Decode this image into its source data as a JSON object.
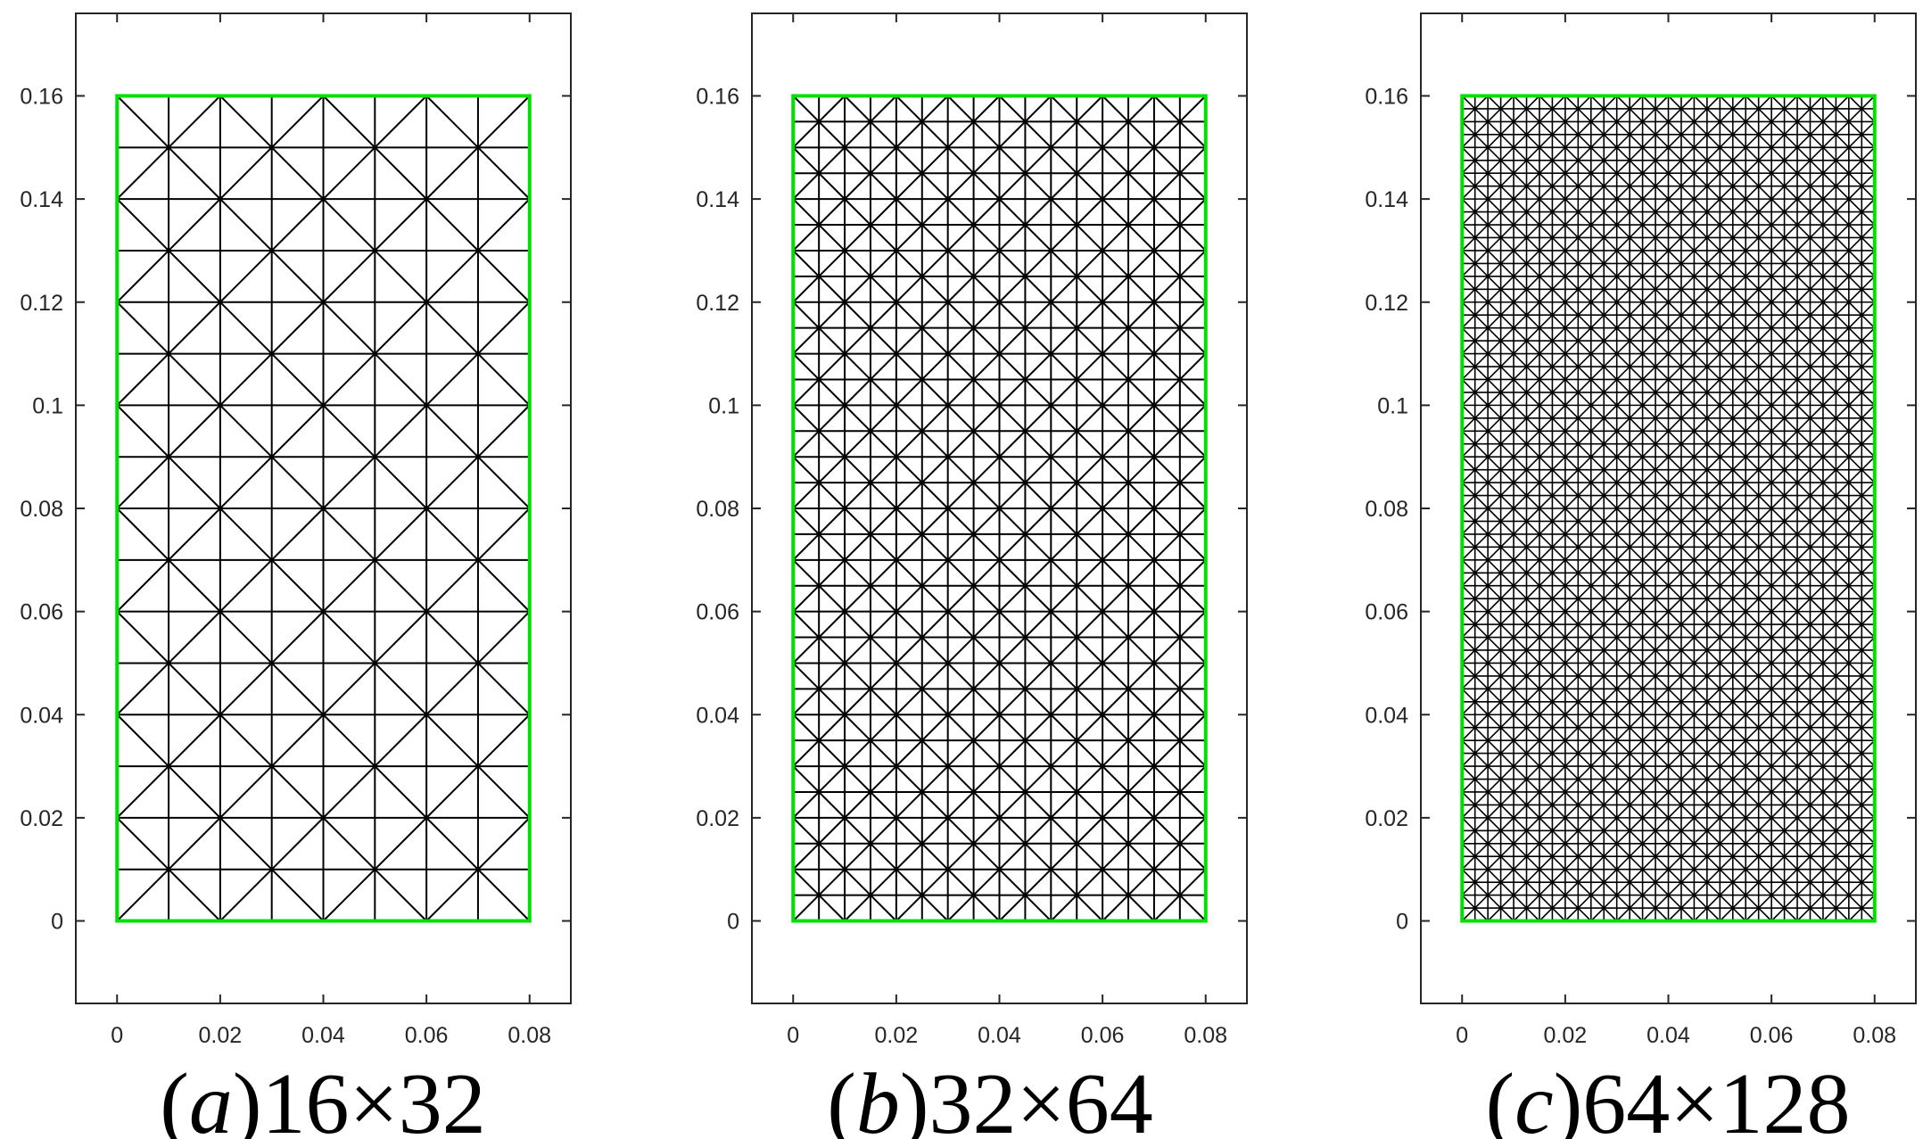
{
  "panels": [
    {
      "id": "a",
      "caption": {
        "letter": "a",
        "size": "16×32"
      },
      "mesh": {
        "cols": 8,
        "rows": 16
      },
      "domain": {
        "x": [
          0,
          0.08
        ],
        "y": [
          0,
          0.16
        ]
      },
      "xlim": [
        -0.008,
        0.088
      ],
      "ylim": [
        -0.016,
        0.176
      ],
      "xticks": [
        "0",
        "0.02",
        "0.04",
        "0.06",
        "0.08"
      ],
      "yticks": [
        "0",
        "0.02",
        "0.04",
        "0.06",
        "0.08",
        "0.1",
        "0.12",
        "0.14",
        "0.16"
      ]
    },
    {
      "id": "b",
      "caption": {
        "letter": "b",
        "size": "32×64"
      },
      "mesh": {
        "cols": 16,
        "rows": 32
      },
      "domain": {
        "x": [
          0,
          0.08
        ],
        "y": [
          0,
          0.16
        ]
      },
      "xlim": [
        -0.008,
        0.088
      ],
      "ylim": [
        -0.016,
        0.176
      ],
      "xticks": [
        "0",
        "0.02",
        "0.04",
        "0.06",
        "0.08"
      ],
      "yticks": [
        "0",
        "0.02",
        "0.04",
        "0.06",
        "0.08",
        "0.1",
        "0.12",
        "0.14",
        "0.16"
      ]
    },
    {
      "id": "c",
      "caption": {
        "letter": "c",
        "size": "64×128"
      },
      "mesh": {
        "cols": 32,
        "rows": 64
      },
      "domain": {
        "x": [
          0,
          0.08
        ],
        "y": [
          0,
          0.16
        ]
      },
      "xlim": [
        -0.008,
        0.088
      ],
      "ylim": [
        -0.016,
        0.176
      ],
      "xticks": [
        "0",
        "0.02",
        "0.04",
        "0.06",
        "0.08"
      ],
      "yticks": [
        "0",
        "0.02",
        "0.04",
        "0.06",
        "0.08",
        "0.1",
        "0.12",
        "0.14",
        "0.16"
      ]
    }
  ],
  "colors": {
    "boundary": "#00e000",
    "mesh": "#000000",
    "axes": "#262626"
  }
}
